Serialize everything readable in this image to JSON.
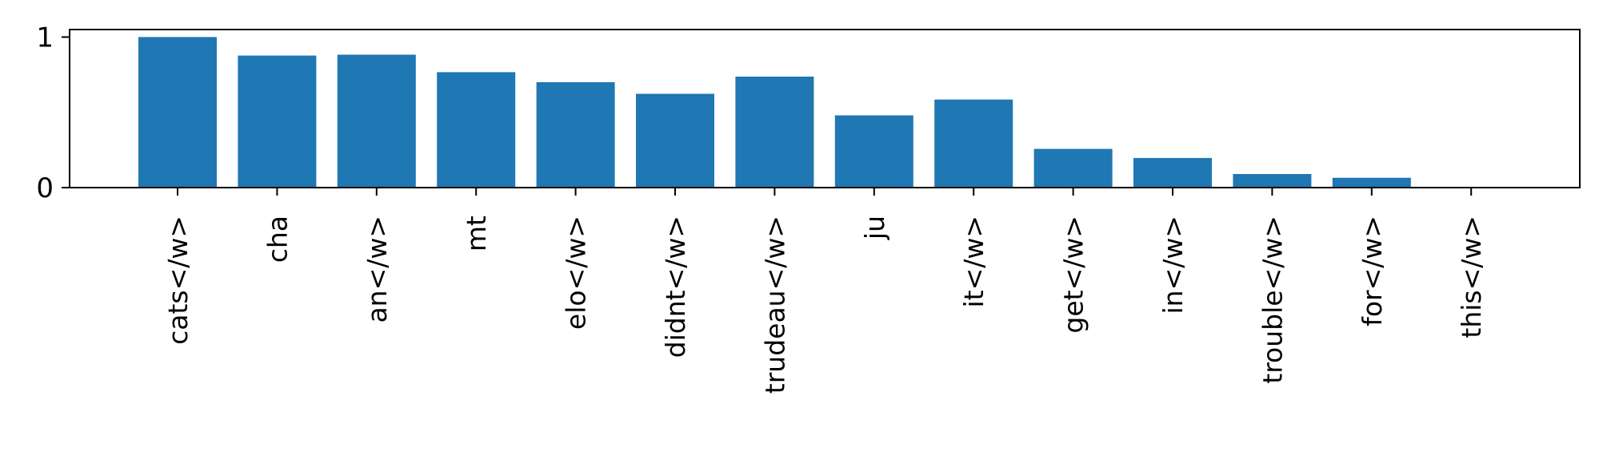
{
  "chart_data": {
    "type": "bar",
    "categories": [
      "cats</w>",
      "cha",
      "an</w>",
      "mt",
      "elo</w>",
      "didnt</w>",
      "trudeau</w>",
      "ju",
      "it</w>",
      "get</w>",
      "in</w>",
      "trouble</w>",
      "for</w>",
      "this</w>"
    ],
    "values": [
      1.0,
      0.877,
      0.883,
      0.767,
      0.7,
      0.623,
      0.737,
      0.48,
      0.585,
      0.257,
      0.197,
      0.09,
      0.065,
      0.0
    ],
    "yticks": [
      0,
      1
    ],
    "ytick_labels": [
      "0",
      "1"
    ],
    "ylim": [
      0,
      1.05
    ],
    "bar_color": "#1f77b4",
    "grid": false,
    "legend": "none"
  }
}
